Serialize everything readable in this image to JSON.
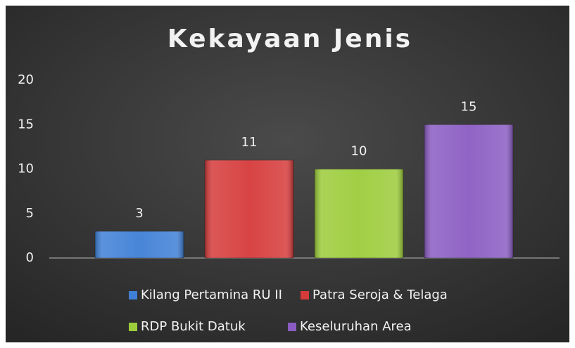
{
  "chart_data": {
    "type": "bar",
    "title": "Kekayaan Jenis",
    "categories": [
      null
    ],
    "series": [
      {
        "name": "Kilang Pertamina RU II",
        "color": "#3f7fd6",
        "values": [
          3
        ]
      },
      {
        "name": "Patra Seroja & Telaga",
        "color": "#d63a3a",
        "values": [
          11
        ]
      },
      {
        "name": "RDP Bukit Datuk",
        "color": "#9ccc3a",
        "values": [
          10
        ]
      },
      {
        "name": "Keseluruhan Area",
        "color": "#8a5cc2",
        "values": [
          15
        ]
      }
    ],
    "ylim": [
      0,
      20
    ],
    "yticks": [
      0,
      5,
      10,
      15,
      20
    ],
    "grid": false,
    "legend": "bottom"
  }
}
